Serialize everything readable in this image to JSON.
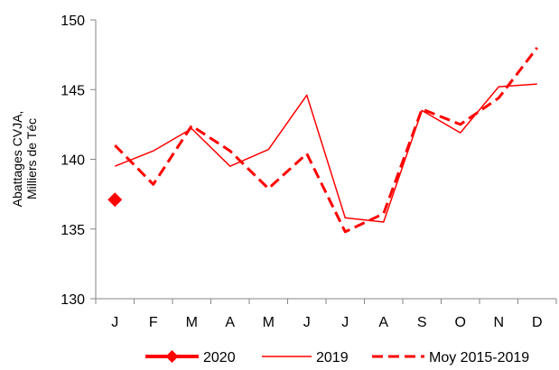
{
  "chart_data": {
    "type": "line",
    "categories": [
      "J",
      "F",
      "M",
      "A",
      "M",
      "J",
      "J",
      "A",
      "S",
      "O",
      "N",
      "D"
    ],
    "ylabel_lines": [
      "Abattages CVJA,",
      "Milliers de Téc"
    ],
    "ylim": [
      130,
      150
    ],
    "yticks": [
      130,
      135,
      140,
      145,
      150
    ],
    "grid": false,
    "legend_position": "bottom",
    "series": [
      {
        "name": "2020",
        "style": "marker",
        "color": "#ff0000",
        "values": [
          137.1,
          null,
          null,
          null,
          null,
          null,
          null,
          null,
          null,
          null,
          null,
          null
        ]
      },
      {
        "name": "2019",
        "style": "solid",
        "color": "#ff0000",
        "values": [
          139.5,
          140.6,
          142.2,
          139.5,
          140.7,
          144.6,
          135.8,
          135.5,
          143.5,
          141.9,
          145.2,
          145.4
        ]
      },
      {
        "name": "Moy 2015-2019",
        "style": "dashed",
        "color": "#ff0000",
        "values": [
          141.0,
          138.2,
          142.4,
          140.6,
          137.9,
          140.4,
          134.8,
          136.1,
          143.6,
          142.5,
          144.4,
          148.0
        ]
      }
    ]
  }
}
